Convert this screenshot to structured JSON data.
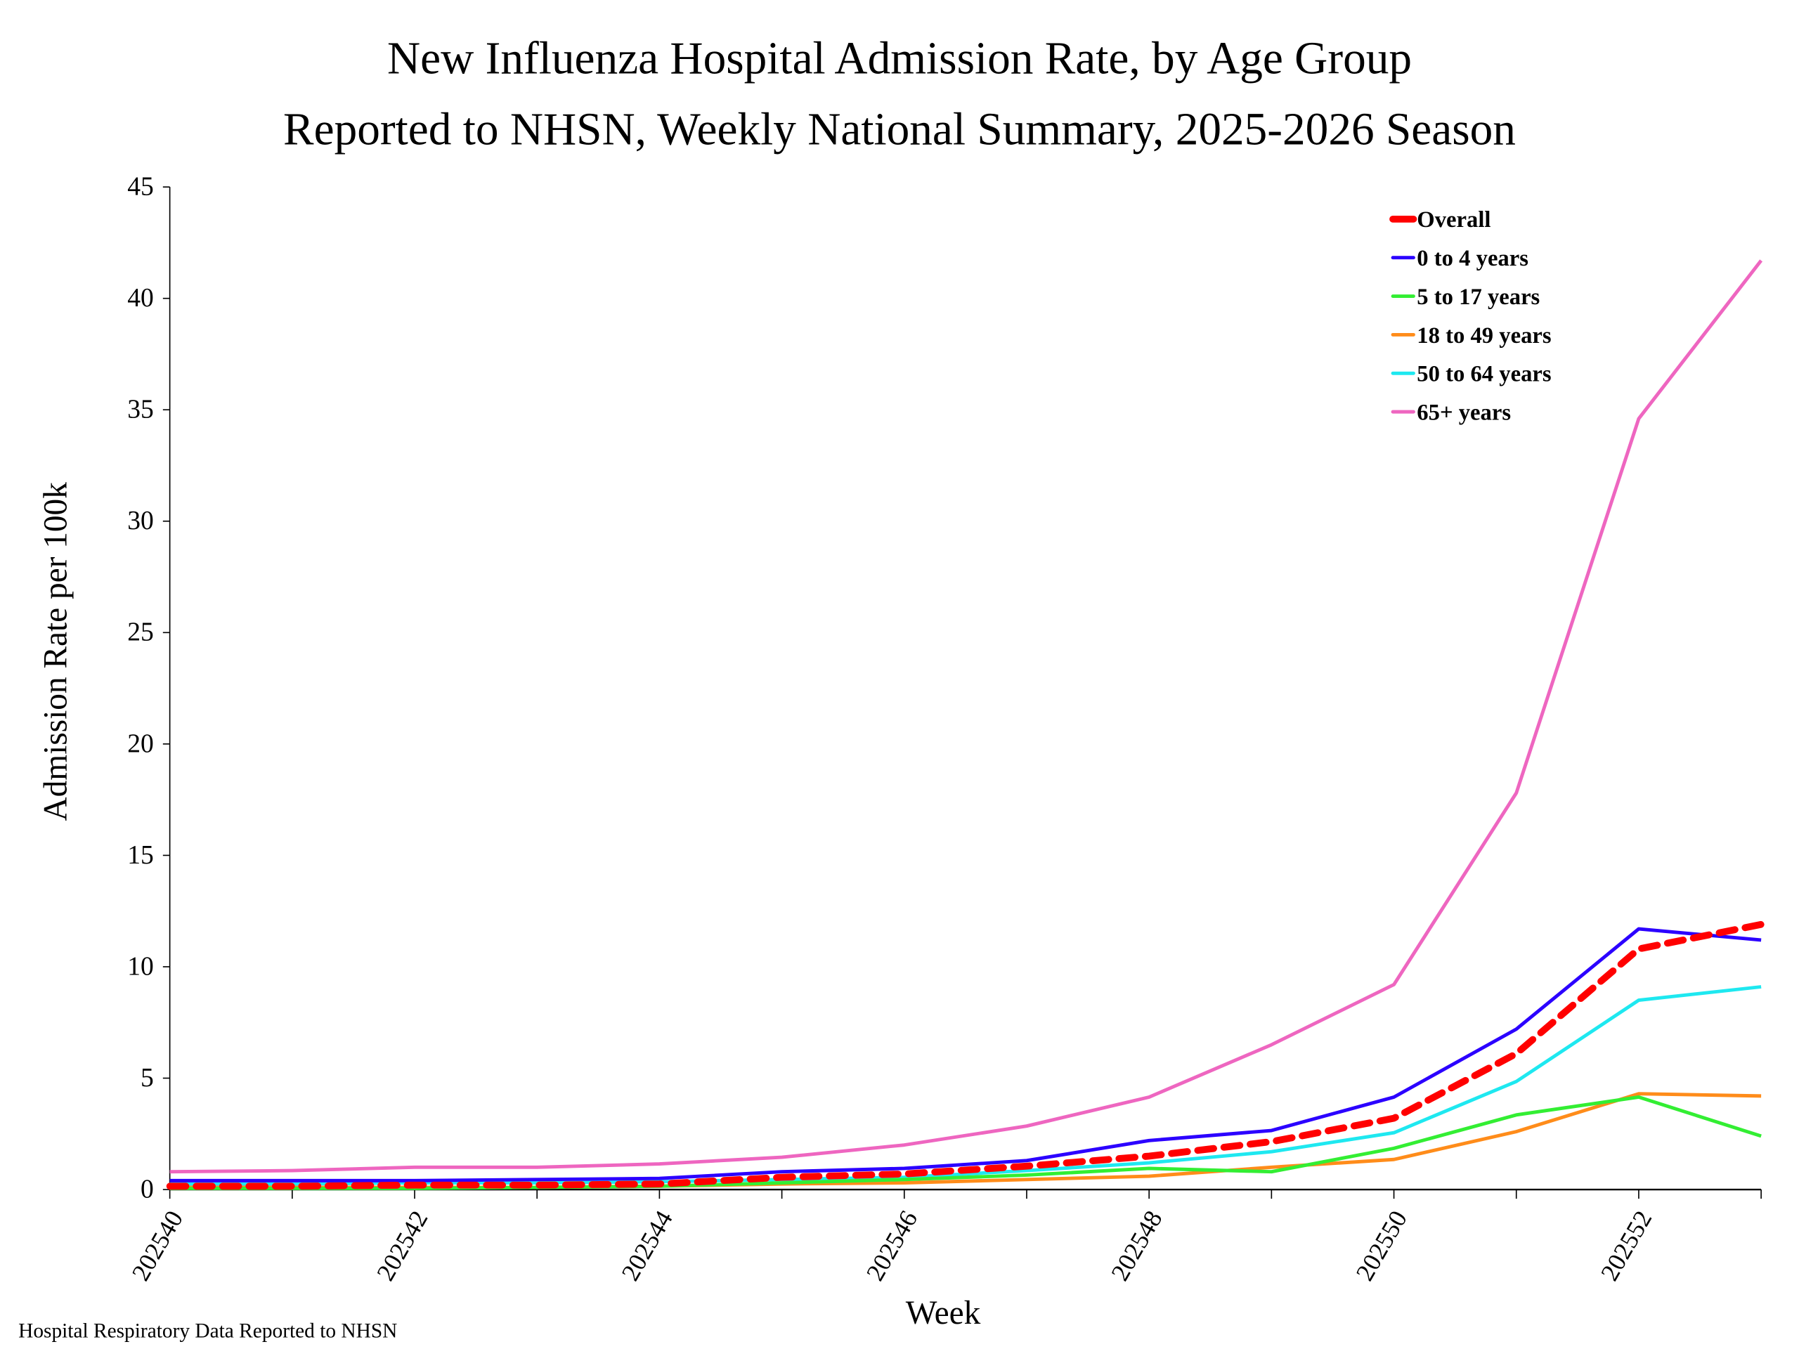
{
  "chart_data": {
    "type": "line",
    "title": "New Influenza Hospital Admission Rate, by Age Group",
    "subtitle": "Reported to NHSN, Weekly National Summary, 2025-2026 Season",
    "xlabel": "Week",
    "ylabel": "Admission Rate per 100k",
    "footnote": "Hospital Respiratory Data Reported to NHSN",
    "x": [
      "202540",
      "202541",
      "202542",
      "202543",
      "202544",
      "202545",
      "202546",
      "202547",
      "202548",
      "202549",
      "202550",
      "202551",
      "202552",
      "202553"
    ],
    "x_tick_labels": [
      "202540",
      "202542",
      "202544",
      "202546",
      "202548",
      "202550",
      "202552"
    ],
    "ylim": [
      0,
      45
    ],
    "y_ticks": [
      0,
      5,
      10,
      15,
      20,
      25,
      30,
      35,
      40,
      45
    ],
    "grid": false,
    "legend_placement": "top-right",
    "series": [
      {
        "name": "Overall",
        "color": "#ff0000",
        "dashed": true,
        "values": [
          0.15,
          0.15,
          0.2,
          0.2,
          0.25,
          0.55,
          0.7,
          1.05,
          1.5,
          2.15,
          3.2,
          6.1,
          10.8,
          11.9
        ]
      },
      {
        "name": "0 to 4 years",
        "color": "#2b00ff",
        "values": [
          0.4,
          0.4,
          0.4,
          0.45,
          0.5,
          0.8,
          0.95,
          1.3,
          2.2,
          2.65,
          4.15,
          7.2,
          11.7,
          11.2
        ]
      },
      {
        "name": "5 to 17 years",
        "color": "#33ee33",
        "values": [
          0.05,
          0.05,
          0.05,
          0.1,
          0.15,
          0.3,
          0.45,
          0.65,
          0.95,
          0.8,
          1.85,
          3.35,
          4.15,
          2.4
        ]
      },
      {
        "name": "18 to 49 years",
        "color": "#ff8c1a",
        "values": [
          0.1,
          0.1,
          0.1,
          0.1,
          0.15,
          0.25,
          0.3,
          0.45,
          0.6,
          1.0,
          1.35,
          2.6,
          4.3,
          4.2
        ]
      },
      {
        "name": "50 to 64 years",
        "color": "#1ee8f0",
        "values": [
          0.25,
          0.25,
          0.3,
          0.3,
          0.35,
          0.45,
          0.55,
          0.85,
          1.2,
          1.7,
          2.55,
          4.85,
          8.5,
          9.1
        ]
      },
      {
        "name": "65+ years",
        "color": "#ee66c0",
        "values": [
          0.8,
          0.85,
          1.0,
          1.0,
          1.15,
          1.45,
          2.0,
          2.85,
          4.15,
          6.5,
          9.2,
          17.8,
          34.6,
          41.7
        ]
      }
    ]
  }
}
